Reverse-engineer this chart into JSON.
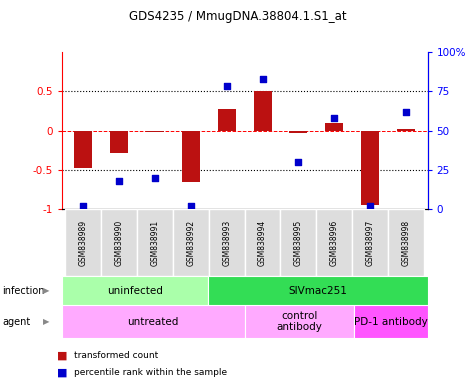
{
  "title": "GDS4235 / MmugDNA.38804.1.S1_at",
  "samples": [
    "GSM838989",
    "GSM838990",
    "GSM838991",
    "GSM838992",
    "GSM838993",
    "GSM838994",
    "GSM838995",
    "GSM838996",
    "GSM838997",
    "GSM838998"
  ],
  "red_bars": [
    -0.47,
    -0.28,
    -0.02,
    -0.65,
    0.28,
    0.5,
    -0.03,
    0.09,
    -0.95,
    0.02
  ],
  "blue_squares_pct": [
    2,
    18,
    20,
    2,
    78,
    83,
    30,
    58,
    2,
    62
  ],
  "infection_groups": [
    {
      "label": "uninfected",
      "start": 0,
      "end": 4,
      "color": "#aaffaa"
    },
    {
      "label": "SIVmac251",
      "start": 4,
      "end": 10,
      "color": "#33dd55"
    }
  ],
  "agent_groups": [
    {
      "label": "untreated",
      "start": 0,
      "end": 5,
      "color": "#ffaaff"
    },
    {
      "label": "control\nantibody",
      "start": 5,
      "end": 8,
      "color": "#ffaaff"
    },
    {
      "label": "PD-1 antibody",
      "start": 8,
      "end": 10,
      "color": "#ff55ff"
    }
  ],
  "ylim": [
    -1,
    1
  ],
  "y2lim": [
    0,
    100
  ],
  "bar_color": "#BB1111",
  "square_color": "#0000CC",
  "yticks_left": [
    -1,
    -0.5,
    0,
    0.5
  ],
  "yticks_right": [
    0,
    25,
    50,
    75,
    100
  ],
  "ytick_labels_left": [
    "-1",
    "-0.5",
    "0",
    "0.5"
  ],
  "ytick_labels_right": [
    "0",
    "25",
    "50",
    "75",
    "100%"
  ],
  "grid_lines": [
    0.5,
    0.0,
    -0.5
  ],
  "legend_items": [
    {
      "label": "transformed count",
      "color": "#BB1111"
    },
    {
      "label": "percentile rank within the sample",
      "color": "#0000CC"
    }
  ],
  "sample_box_color": "#dddddd",
  "bar_width": 0.5
}
